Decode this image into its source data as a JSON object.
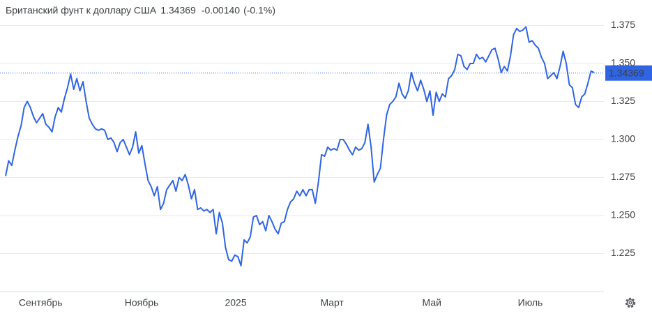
{
  "chart_data": {
    "type": "line",
    "title": "Британский фунт к доллару США",
    "price": 1.34369,
    "change": {
      "value": -0.0014,
      "label": "-0.00140"
    },
    "change_pct": {
      "value": -0.1,
      "label": "(-0.1%)"
    },
    "color": "#2f64e3",
    "change_color": "#e8434a",
    "grid": true,
    "ylim": [
      1.2,
      1.383
    ],
    "yticks": [
      {
        "value": 1.225,
        "label": "1.225"
      },
      {
        "value": 1.25,
        "label": "1.250"
      },
      {
        "value": 1.275,
        "label": "1.275"
      },
      {
        "value": 1.3,
        "label": "1.300"
      },
      {
        "value": 1.325,
        "label": "1.325"
      },
      {
        "value": 1.35,
        "label": "1.350"
      },
      {
        "value": 1.375,
        "label": "1.375"
      }
    ],
    "xlim": [
      0,
      190
    ],
    "xticks": [
      {
        "value": 11.3,
        "label": "Сентябрь"
      },
      {
        "value": 43.9,
        "label": "Ноябрь"
      },
      {
        "value": 74.3,
        "label": "2025"
      },
      {
        "value": 105.4,
        "label": "Март"
      },
      {
        "value": 137.6,
        "label": "Май"
      },
      {
        "value": 169.4,
        "label": "Июль"
      }
    ],
    "values": [
      1.276,
      1.286,
      1.283,
      1.293,
      1.302,
      1.309,
      1.321,
      1.325,
      1.321,
      1.315,
      1.311,
      1.314,
      1.317,
      1.31,
      1.308,
      1.305,
      1.315,
      1.321,
      1.318,
      1.327,
      1.334,
      1.343,
      1.333,
      1.34,
      1.332,
      1.338,
      1.325,
      1.314,
      1.31,
      1.307,
      1.306,
      1.307,
      1.306,
      1.3,
      1.301,
      1.298,
      1.292,
      1.298,
      1.3,
      1.295,
      1.29,
      1.295,
      1.305,
      1.291,
      1.296,
      1.284,
      1.273,
      1.269,
      1.263,
      1.269,
      1.254,
      1.258,
      1.267,
      1.27,
      1.273,
      1.266,
      1.275,
      1.273,
      1.277,
      1.27,
      1.261,
      1.267,
      1.254,
      1.255,
      1.253,
      1.254,
      1.252,
      1.254,
      1.238,
      1.252,
      1.245,
      1.229,
      1.221,
      1.22,
      1.224,
      1.223,
      1.217,
      1.234,
      1.232,
      1.236,
      1.249,
      1.25,
      1.244,
      1.246,
      1.24,
      1.25,
      1.246,
      1.241,
      1.238,
      1.245,
      1.246,
      1.254,
      1.259,
      1.261,
      1.266,
      1.263,
      1.267,
      1.263,
      1.267,
      1.267,
      1.258,
      1.272,
      1.29,
      1.289,
      1.295,
      1.293,
      1.294,
      1.293,
      1.3,
      1.3,
      1.297,
      1.293,
      1.29,
      1.295,
      1.293,
      1.294,
      1.298,
      1.31,
      1.295,
      1.272,
      1.277,
      1.281,
      1.3,
      1.316,
      1.323,
      1.325,
      1.328,
      1.337,
      1.33,
      1.327,
      1.332,
      1.344,
      1.337,
      1.332,
      1.339,
      1.333,
      1.325,
      1.332,
      1.316,
      1.331,
      1.325,
      1.33,
      1.328,
      1.34,
      1.342,
      1.346,
      1.356,
      1.355,
      1.348,
      1.346,
      1.35,
      1.35,
      1.356,
      1.353,
      1.354,
      1.351,
      1.355,
      1.359,
      1.36,
      1.353,
      1.344,
      1.348,
      1.345,
      1.355,
      1.369,
      1.373,
      1.371,
      1.372,
      1.374,
      1.364,
      1.365,
      1.362,
      1.36,
      1.354,
      1.35,
      1.34,
      1.342,
      1.344,
      1.34,
      1.348,
      1.358,
      1.35,
      1.336,
      1.334,
      1.323,
      1.321,
      1.328,
      1.33,
      1.337,
      1.345,
      1.344
    ]
  }
}
